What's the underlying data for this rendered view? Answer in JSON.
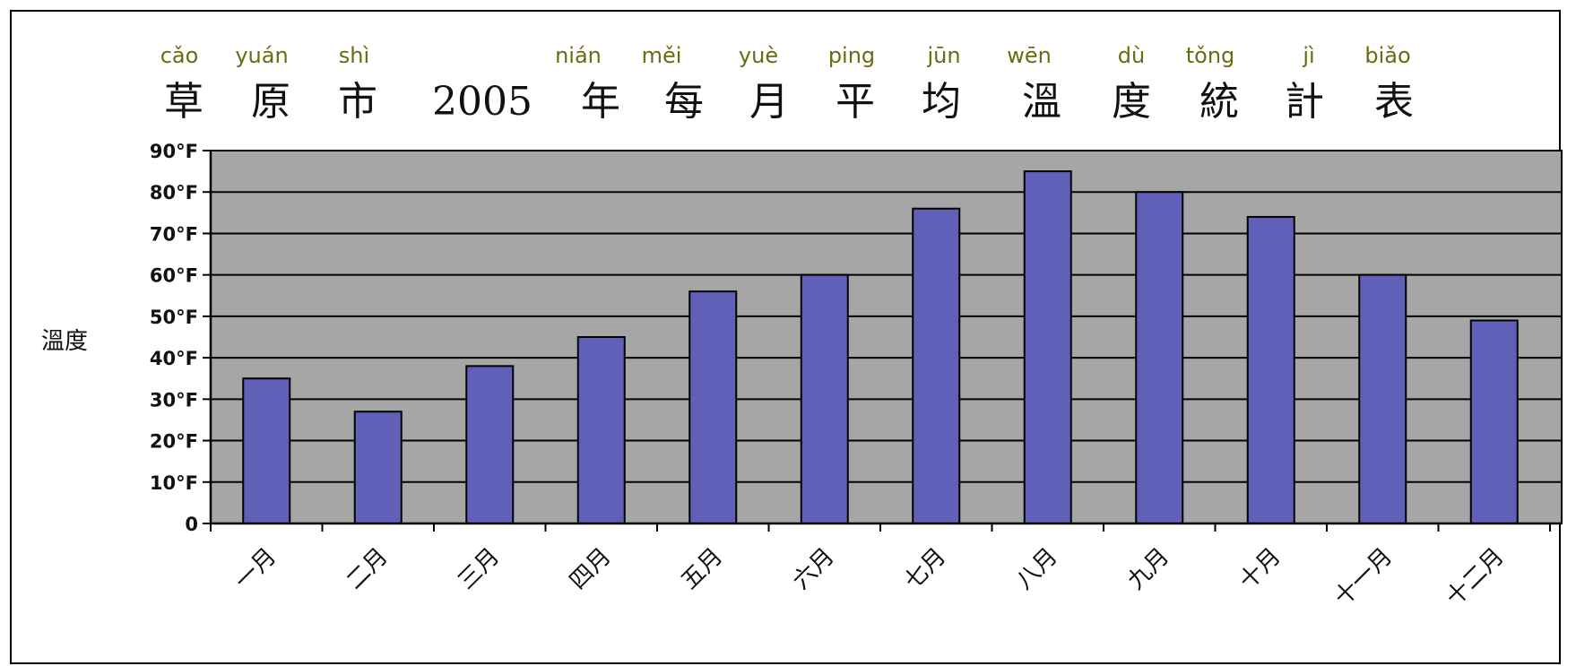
{
  "chart_data": {
    "type": "bar",
    "title": "草原市2005年每月平均溫度統計表",
    "title_pinyin": [
      "cǎo",
      "yuán",
      "shì",
      "nián",
      "měi",
      "yuè",
      "ping",
      "jūn",
      "wēn",
      "dù",
      "tǒng",
      "jì",
      "biǎo"
    ],
    "ylabel": "溫度",
    "xlabel": "",
    "categories": [
      "一月",
      "二月",
      "三月",
      "四月",
      "五月",
      "六月",
      "七月",
      "八月",
      "九月",
      "十月",
      "十一月",
      "十二月"
    ],
    "values": [
      35,
      27,
      38,
      45,
      56,
      60,
      76,
      85,
      80,
      74,
      60,
      49
    ],
    "ylim": [
      0,
      90
    ],
    "yticks": [
      0,
      10,
      20,
      30,
      40,
      50,
      60,
      70,
      80,
      90
    ],
    "ytick_labels": [
      "0",
      "10°F",
      "20°F",
      "30°F",
      "40°F",
      "50°F",
      "60°F",
      "70°F",
      "80°F",
      "90°F"
    ],
    "grid": true,
    "colors": {
      "bar": "#6060b8",
      "plot_bg": "#a6a6a6",
      "pinyin": "#6b6b12"
    }
  }
}
